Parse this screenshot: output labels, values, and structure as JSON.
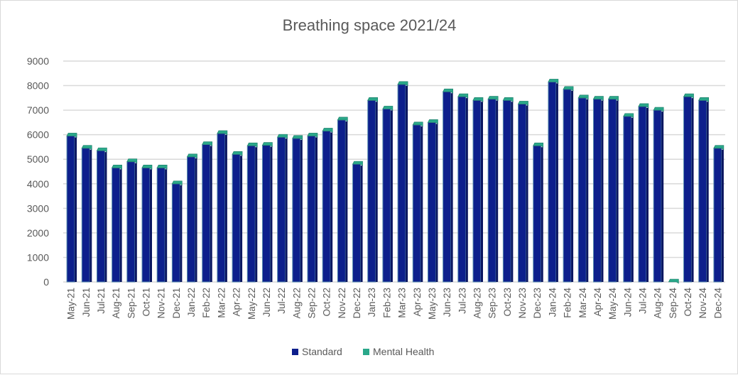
{
  "chart_data": {
    "type": "bar",
    "stacked": true,
    "title": "Breathing space 2021/24",
    "xlabel": "",
    "ylabel": "",
    "ylim": [
      0,
      9000
    ],
    "yticks": [
      0,
      1000,
      2000,
      3000,
      4000,
      5000,
      6000,
      7000,
      8000,
      9000
    ],
    "grid": true,
    "legend_position": "bottom",
    "categories": [
      "May-21",
      "Jun-21",
      "Jul-21",
      "Aug-21",
      "Sep-21",
      "Oct-21",
      "Nov-21",
      "Dec-21",
      "Jan-22",
      "Feb-22",
      "Mar-22",
      "Apr-22",
      "May-22",
      "Jun-22",
      "Jul-22",
      "Aug-22",
      "Sep-22",
      "Oct-22",
      "Nov-22",
      "Dec-22",
      "Jan-23",
      "Feb-23",
      "Mar-23",
      "Apr-23",
      "May-23",
      "Jun-23",
      "Jul-23",
      "Aug-23",
      "Sep-23",
      "Oct-23",
      "Nov-23",
      "Dec-23",
      "Jan-24",
      "Feb-24",
      "Mar-24",
      "Apr-24",
      "May-24",
      "Jun-24",
      "Jul-24",
      "Aug-24",
      "Sep-24",
      "Oct-24",
      "Nov-24",
      "Dec-24"
    ],
    "series": [
      {
        "name": "Standard",
        "color": "#0d1f8c",
        "values": [
          5950,
          5450,
          5350,
          4650,
          4900,
          4650,
          4650,
          4000,
          5100,
          5600,
          6050,
          5200,
          5550,
          5570,
          5900,
          5850,
          5950,
          6150,
          6600,
          4800,
          7400,
          7050,
          8050,
          6400,
          6500,
          7750,
          7550,
          7400,
          7450,
          7400,
          7250,
          5550,
          8150,
          7850,
          7500,
          7450,
          7450,
          6750,
          7150,
          7000,
          0,
          7550,
          7400,
          5450
        ]
      },
      {
        "name": "Mental Health",
        "color": "#2aa88a",
        "values": [
          100,
          100,
          100,
          100,
          100,
          100,
          100,
          100,
          100,
          100,
          100,
          100,
          100,
          100,
          100,
          100,
          100,
          100,
          100,
          100,
          100,
          100,
          100,
          100,
          100,
          100,
          100,
          100,
          100,
          100,
          100,
          100,
          100,
          100,
          100,
          100,
          100,
          100,
          100,
          100,
          0,
          100,
          100,
          100
        ]
      }
    ]
  }
}
